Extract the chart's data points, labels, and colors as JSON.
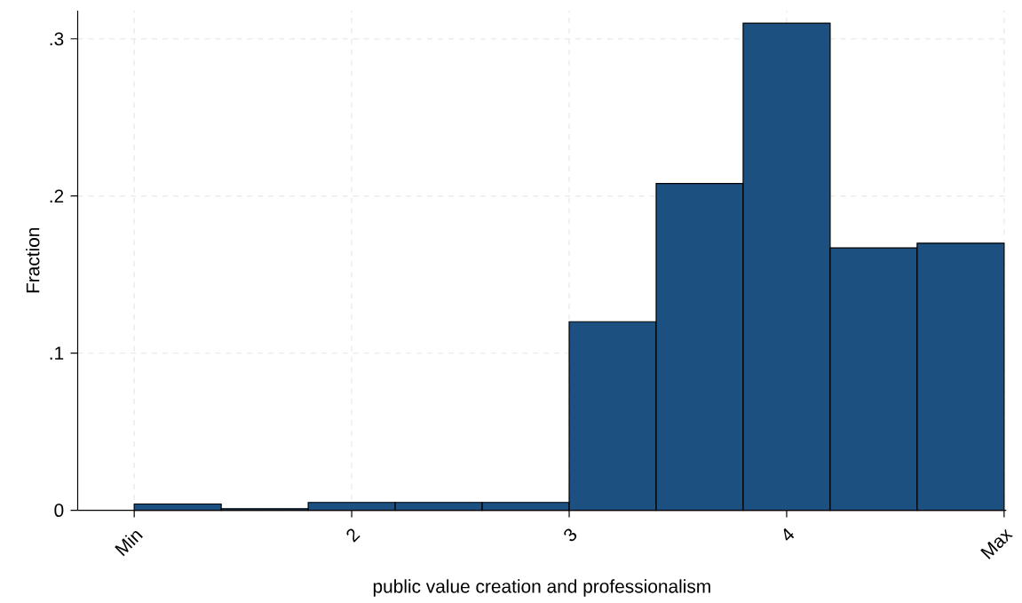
{
  "chart_data": {
    "type": "histogram",
    "xlabel": "public value creation and professionalism",
    "ylabel": "Fraction",
    "bins": [
      1,
      1.4,
      1.8,
      2.2,
      2.6,
      3,
      3.4,
      3.8,
      4.2,
      4.6,
      5
    ],
    "values": [
      0.004,
      0.001,
      0.005,
      0.005,
      0.005,
      0.12,
      0.208,
      0.31,
      0.167,
      0.17
    ],
    "color": "#1c5081",
    "xlim": [
      0.74,
      5.01
    ],
    "ylim": [
      0,
      0.318
    ],
    "xticks": [
      {
        "value": 1,
        "label": "Min"
      },
      2,
      3,
      4,
      {
        "value": 5,
        "label": "Max"
      }
    ],
    "yticks": [
      0,
      {
        "value": 0.1,
        "label": ".1"
      },
      {
        "value": 0.2,
        "label": ".2"
      },
      {
        "value": 0.3,
        "label": ".3"
      }
    ],
    "grid": true
  }
}
